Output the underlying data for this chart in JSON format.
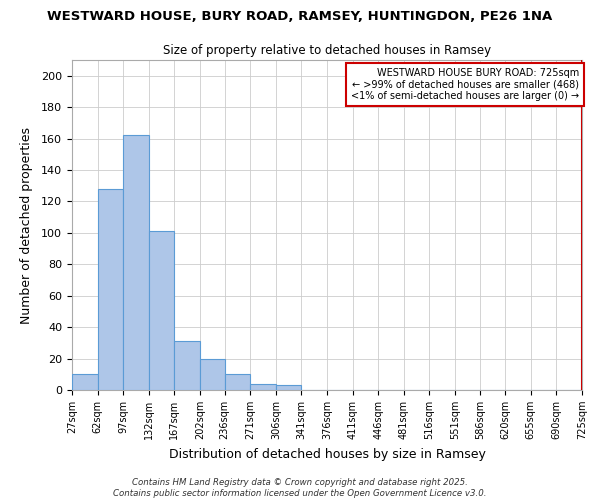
{
  "title": "WESTWARD HOUSE, BURY ROAD, RAMSEY, HUNTINGDON, PE26 1NA",
  "subtitle": "Size of property relative to detached houses in Ramsey",
  "xlabel": "Distribution of detached houses by size in Ramsey",
  "ylabel": "Number of detached properties",
  "footer_line1": "Contains HM Land Registry data © Crown copyright and database right 2025.",
  "footer_line2": "Contains public sector information licensed under the Open Government Licence v3.0.",
  "bar_edges": [
    27,
    62,
    97,
    132,
    167,
    202,
    236,
    271,
    306,
    341,
    376,
    411,
    446,
    481,
    516,
    551,
    586,
    620,
    655,
    690,
    725
  ],
  "bar_heights": [
    10,
    128,
    162,
    101,
    31,
    20,
    10,
    4,
    3,
    0,
    0,
    0,
    0,
    0,
    0,
    0,
    0,
    0,
    0,
    0
  ],
  "bar_color": "#aec6e8",
  "bar_edge_color": "#5b9bd5",
  "annotation_box_color": "#cc0000",
  "annotation_line1": "WESTWARD HOUSE BURY ROAD: 725sqm",
  "annotation_line2": "← >99% of detached houses are smaller (468)",
  "annotation_line3": "<1% of semi-detached houses are larger (0) →",
  "property_line_x": 725,
  "ylim": [
    0,
    210
  ],
  "yticks": [
    0,
    20,
    40,
    60,
    80,
    100,
    120,
    140,
    160,
    180,
    200
  ],
  "xlim": [
    27,
    725
  ],
  "background_color": "#ffffff",
  "grid_color": "#cccccc"
}
